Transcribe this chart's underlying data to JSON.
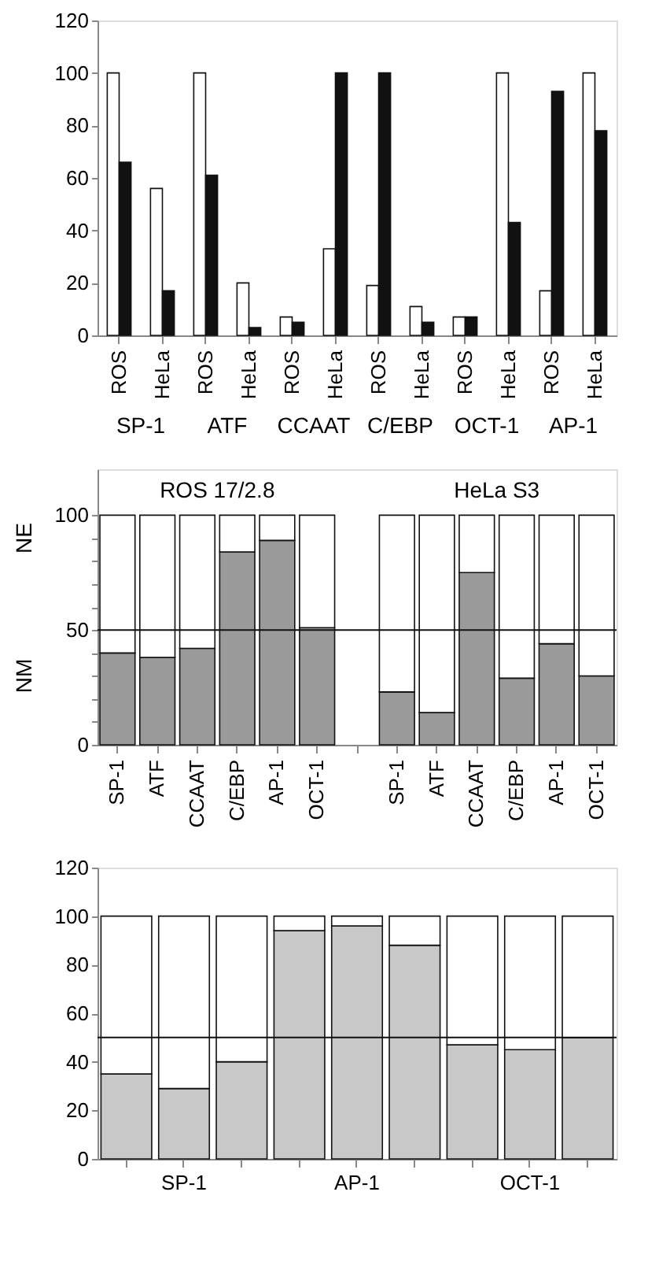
{
  "chart_data": [
    {
      "type": "bar",
      "categories": [
        "ROS",
        "HeLa",
        "ROS",
        "HeLa",
        "ROS",
        "HeLa",
        "ROS",
        "HeLa",
        "ROS",
        "HeLa",
        "ROS",
        "HeLa"
      ],
      "series": [
        {
          "color": "#ffffff",
          "values": [
            100,
            56,
            100,
            20,
            7,
            33,
            19,
            11,
            7,
            100,
            17,
            100
          ]
        },
        {
          "color": "#111111",
          "values": [
            66,
            17,
            61,
            3,
            5,
            100,
            100,
            5,
            7,
            43,
            93,
            78
          ]
        }
      ],
      "ylim": [
        0,
        120
      ],
      "yticks": [
        0,
        20,
        40,
        60,
        80,
        100,
        120
      ],
      "grid": false,
      "annotations": [
        "SP-1",
        "ATF",
        "CCAAT",
        "C/EBP",
        "OCT-1",
        "AP-1"
      ]
    },
    {
      "type": "bar",
      "stacked": true,
      "categories": [
        "SP-1",
        "ATF",
        "CCAAT",
        "C/EBP",
        "AP-1",
        "OCT-1",
        null,
        "SP-1",
        "ATF",
        "CCAAT",
        "C/EBP",
        "AP-1",
        "OCT-1"
      ],
      "series": [
        {
          "color": "#9a9a9a",
          "values": [
            40,
            38,
            42,
            84,
            89,
            51,
            null,
            23,
            14,
            75,
            29,
            44,
            30
          ]
        },
        {
          "color": "#ffffff",
          "values": [
            60,
            62,
            58,
            16,
            11,
            49,
            null,
            77,
            86,
            25,
            71,
            56,
            70
          ]
        }
      ],
      "ylim": [
        0,
        120
      ],
      "yticks": [
        0,
        {
          "value": 10,
          "label": null
        },
        {
          "value": 20,
          "label": null
        },
        {
          "value": 30,
          "label": null
        },
        {
          "value": 40,
          "label": null
        },
        50,
        {
          "value": 60,
          "label": null
        },
        {
          "value": 70,
          "label": null
        },
        {
          "value": 80,
          "label": null
        },
        {
          "value": 90,
          "label": null
        },
        100
      ],
      "grid": false,
      "ref_lines": [
        {
          "axis": "y",
          "value": 50
        }
      ],
      "annotations": [
        "ROS 17/2.8",
        "HeLa S3",
        "NM",
        "NE"
      ]
    },
    {
      "type": "bar",
      "stacked": true,
      "categories": [
        null,
        "SP-1",
        null,
        null,
        "AP-1",
        null,
        null,
        "OCT-1",
        null
      ],
      "series": [
        {
          "color": "#c8c8c8",
          "values": [
            35,
            29,
            40,
            94,
            96,
            88,
            47,
            45,
            50
          ]
        },
        {
          "color": "#ffffff",
          "values": [
            65,
            71,
            60,
            6,
            4,
            12,
            53,
            55,
            50
          ]
        }
      ],
      "ylim": [
        0,
        120
      ],
      "yticks": [
        0,
        20,
        40,
        60,
        80,
        100,
        120
      ],
      "grid": false,
      "ref_lines": [
        {
          "axis": "y",
          "value": 50
        }
      ]
    }
  ]
}
